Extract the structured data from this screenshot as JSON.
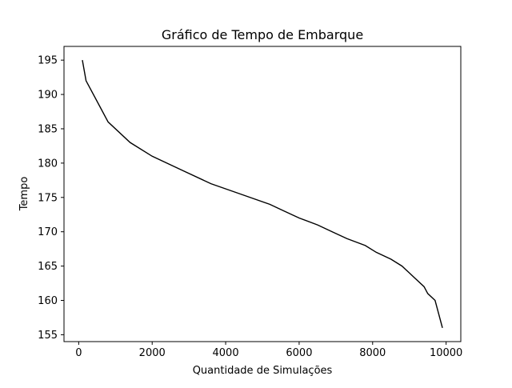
{
  "chart_data": {
    "type": "line",
    "title": "Gráfico de Tempo de Embarque",
    "xlabel": "Quantidade de Simulações",
    "ylabel": "Tempo",
    "xlim": [
      -400,
      10400
    ],
    "ylim": [
      154,
      197
    ],
    "xticks": [
      0,
      2000,
      4000,
      6000,
      8000,
      10000
    ],
    "yticks": [
      155,
      160,
      165,
      170,
      175,
      180,
      185,
      190,
      195
    ],
    "grid": false,
    "line_color": "#000000",
    "series": [
      {
        "x": [
          100,
          200,
          800,
          1400,
          2000,
          2800,
          3600,
          4400,
          5200,
          5600,
          6000,
          6500,
          6900,
          7300,
          7800,
          8100,
          8500,
          8800,
          9100,
          9400,
          9500,
          9700,
          9900
        ],
        "y": [
          195,
          192,
          186,
          183,
          181,
          179,
          177,
          175.5,
          174,
          173,
          172,
          171,
          170,
          169,
          168,
          167,
          166,
          165,
          163.5,
          162,
          161,
          160,
          156
        ]
      }
    ]
  }
}
